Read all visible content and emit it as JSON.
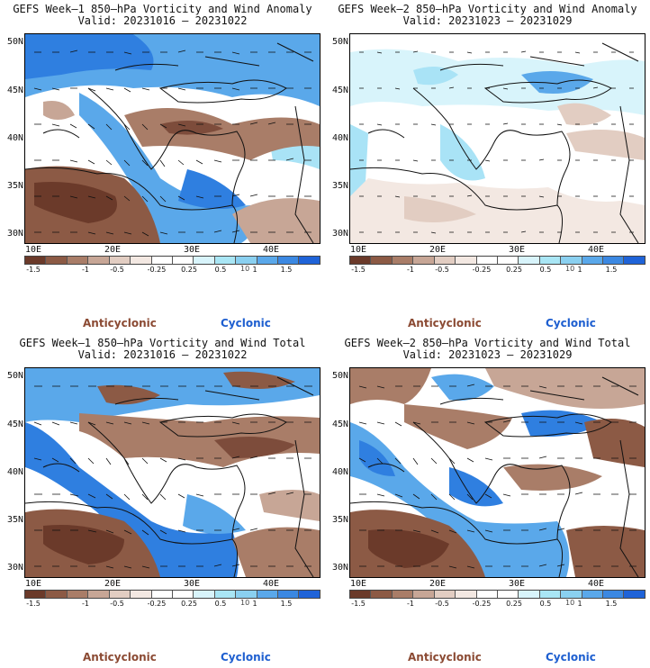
{
  "panels": [
    {
      "title": "GEFS Week–1 850–hPa Vorticity and Wind Anomaly",
      "valid": "Valid: 20231016 – 20231022"
    },
    {
      "title": "GEFS Week–2 850–hPa Vorticity and Wind Anomaly",
      "valid": "Valid: 20231023 – 20231029"
    },
    {
      "title": "GEFS Week–1 850–hPa Vorticity and Wind Total",
      "valid": "Valid: 20231016 – 20231022"
    },
    {
      "title": "GEFS Week–2 850–hPa Vorticity and Wind Total",
      "valid": "Valid: 20231023 – 20231029"
    }
  ],
  "axes": {
    "lat_labels": [
      "50N",
      "45N",
      "40N",
      "35N",
      "30N"
    ],
    "lon_labels": [
      "10E",
      "20E",
      "30E",
      "40E"
    ]
  },
  "colorbar": {
    "tick_labels": [
      "-1.5",
      "-1",
      "-0.5",
      "-0.25",
      "0.25",
      "0.5",
      "1",
      "1.5"
    ],
    "exponent": "10",
    "colors": [
      "#6b3a2a",
      "#8c5a45",
      "#a97d68",
      "#c7a696",
      "#e2cdc2",
      "#f3e8e2",
      "#ffffff",
      "#ffffff",
      "#d8f4fb",
      "#a9e6f5",
      "#8ad0f0",
      "#5aa8ea",
      "#3b88e2",
      "#1f63d8"
    ]
  },
  "legend": {
    "anticyclonic": "Anticyclonic",
    "cyclonic": "Cyclonic"
  },
  "field_colors": {
    "anticyclonic_strong": "#7d4c3b",
    "anticyclonic_weak": "#d8bcaf",
    "neutral": "#ffffff",
    "cyclonic_weak": "#a9e3f6",
    "cyclonic_strong": "#2f7fe0"
  }
}
